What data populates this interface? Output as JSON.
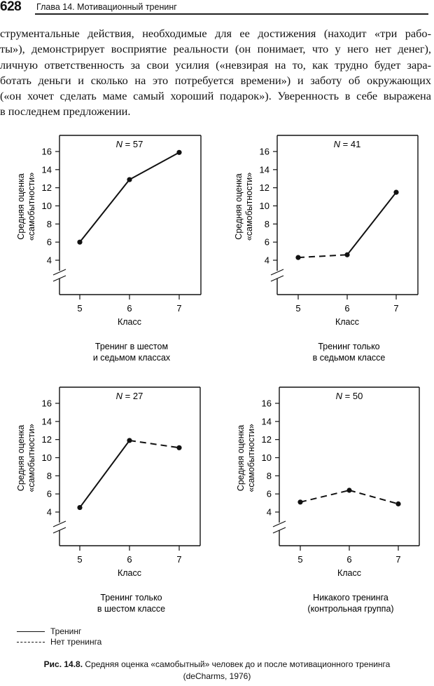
{
  "header": {
    "page_number": "628",
    "chapter_title": "Глава 14. Мотивационный тренинг"
  },
  "body_text": {
    "lines": [
      "струментальные действия, необходимые для ее достижения (находит «три рабо-",
      "ты»), демонстрирует восприятие реальности (он понимает, что у него нет денег),",
      "личную ответственность за свои усилия («невзирая на то, как трудно будет зара-",
      "ботать деньги и сколько на это потребуется времени») и заботу об окружающих",
      "(«он хочет сделать маме самый хороший подарок»). Уверенность в себе выражена",
      "в последнем предложении."
    ]
  },
  "legend": {
    "training": "Тренинг",
    "no_training": "Нет тренинга"
  },
  "caption": {
    "label": "Рис. 14.8.",
    "text": "Средняя оценка «самобытный» человек до и после мотивационного тренинга",
    "source": "(deCharms, 1976)"
  },
  "chart_data": [
    {
      "type": "line",
      "title": "N = 57",
      "subtitle": "Тренинг в шестом и седьмом классах",
      "subtitle_lines": [
        "Тренинг в шестом",
        "и седьмом классах"
      ],
      "xlabel": "Класс",
      "ylabel_lines": [
        "Средняя оценка",
        "«самобытности»"
      ],
      "x": [
        5,
        6,
        7
      ],
      "x_tick_labels": [
        "5",
        "6",
        "7"
      ],
      "y_ticks": [
        4,
        6,
        8,
        10,
        12,
        14,
        16
      ],
      "ylim": [
        0,
        17.8
      ],
      "axis_break": true,
      "grid": false,
      "values": [
        6.0,
        12.9,
        15.9
      ],
      "segment_styles": [
        "solid",
        "solid"
      ]
    },
    {
      "type": "line",
      "title": "N = 41",
      "subtitle": "Тренинг только в седьмом классе",
      "subtitle_lines": [
        "Тренинг только",
        "в седьмом классе"
      ],
      "xlabel": "Класс",
      "ylabel_lines": [
        "Средняя оценка",
        "«самобытности»"
      ],
      "x": [
        5,
        6,
        7
      ],
      "x_tick_labels": [
        "5",
        "6",
        "7"
      ],
      "y_ticks": [
        4,
        6,
        8,
        10,
        12,
        14,
        16
      ],
      "ylim": [
        0,
        17.8
      ],
      "axis_break": true,
      "grid": false,
      "values": [
        4.3,
        4.6,
        11.5
      ],
      "segment_styles": [
        "dashed",
        "solid"
      ]
    },
    {
      "type": "line",
      "title": "N = 27",
      "subtitle": "Тренинг только в шестом классе",
      "subtitle_lines": [
        "Тренинг только",
        "в шестом классе"
      ],
      "xlabel": "Класс",
      "ylabel_lines": [
        "Средняя оценка",
        "«самобытности»"
      ],
      "x": [
        5,
        6,
        7
      ],
      "x_tick_labels": [
        "5",
        "6",
        "7"
      ],
      "y_ticks": [
        4,
        6,
        8,
        10,
        12,
        14,
        16
      ],
      "ylim": [
        0,
        17.8
      ],
      "axis_break": true,
      "grid": false,
      "values": [
        4.5,
        11.9,
        11.1
      ],
      "segment_styles": [
        "solid",
        "dashed"
      ]
    },
    {
      "type": "line",
      "title": "N = 50",
      "subtitle": "Никакого тренинга (контрольная группа)",
      "subtitle_lines": [
        "Никакого тренинга",
        "(контрольная группа)"
      ],
      "xlabel": "Класс",
      "ylabel_lines": [
        "Средняя оценка",
        "«самобытности»"
      ],
      "x": [
        5,
        6,
        7
      ],
      "x_tick_labels": [
        "5",
        "6",
        "7"
      ],
      "y_ticks": [
        4,
        6,
        8,
        10,
        12,
        14,
        16
      ],
      "ylim": [
        0,
        17.8
      ],
      "axis_break": true,
      "grid": false,
      "values": [
        5.1,
        6.4,
        4.9
      ],
      "segment_styles": [
        "dashed",
        "dashed"
      ]
    }
  ]
}
